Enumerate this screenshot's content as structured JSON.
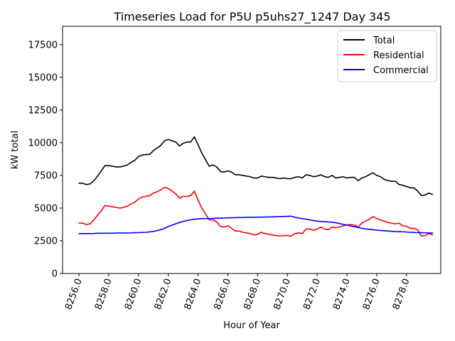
{
  "chart_data": {
    "type": "line",
    "title": "Timeseries Load for P5U p5uhs27_1247  Day 345",
    "xlabel": "Hour of Year",
    "ylabel": "kW total",
    "xlim": [
      8254.9,
      8280.3
    ],
    "ylim": [
      0,
      18900
    ],
    "xticks": [
      8256,
      8258,
      8260,
      8262,
      8264,
      8266,
      8268,
      8270,
      8272,
      8274,
      8276,
      8278
    ],
    "xtick_labels": [
      "8256.0",
      "8258.0",
      "8260.0",
      "8262.0",
      "8264.0",
      "8266.0",
      "8268.0",
      "8270.0",
      "8272.0",
      "8274.0",
      "8276.0",
      "8278.0"
    ],
    "yticks": [
      0,
      2500,
      5000,
      7500,
      10000,
      12500,
      15000,
      17500
    ],
    "ytick_labels": [
      "0",
      "2500",
      "5000",
      "7500",
      "10000",
      "12500",
      "15000",
      "17500"
    ],
    "legend_position": "top-right",
    "x": [
      8256.0,
      8256.25,
      8256.5,
      8256.75,
      8257.0,
      8257.25,
      8257.5,
      8257.75,
      8258.0,
      8258.25,
      8258.5,
      8258.75,
      8259.0,
      8259.25,
      8259.5,
      8259.75,
      8260.0,
      8260.25,
      8260.5,
      8260.75,
      8261.0,
      8261.25,
      8261.5,
      8261.75,
      8262.0,
      8262.25,
      8262.5,
      8262.75,
      8263.0,
      8263.25,
      8263.5,
      8263.75,
      8264.0,
      8264.25,
      8264.5,
      8264.75,
      8265.0,
      8265.25,
      8265.5,
      8265.75,
      8266.0,
      8266.25,
      8266.5,
      8266.75,
      8267.0,
      8267.25,
      8267.5,
      8267.75,
      8268.0,
      8268.25,
      8268.5,
      8268.75,
      8269.0,
      8269.25,
      8269.5,
      8269.75,
      8270.0,
      8270.25,
      8270.5,
      8270.75,
      8271.0,
      8271.25,
      8271.5,
      8271.75,
      8272.0,
      8272.25,
      8272.5,
      8272.75,
      8273.0,
      8273.25,
      8273.5,
      8273.75,
      8274.0,
      8274.25,
      8274.5,
      8274.75,
      8275.0,
      8275.25,
      8275.5,
      8275.75,
      8276.0,
      8276.25,
      8276.5,
      8276.75,
      8277.0,
      8277.25,
      8277.5,
      8277.75,
      8278.0,
      8278.25,
      8278.5,
      8278.75,
      8279.0,
      8279.25,
      8279.5,
      8279.75
    ],
    "series": [
      {
        "name": "Total",
        "color": "#000000",
        "values": [
          6900,
          6900,
          6800,
          6850,
          7100,
          7450,
          7850,
          8250,
          8250,
          8200,
          8150,
          8150,
          8200,
          8300,
          8500,
          8650,
          8950,
          9050,
          9100,
          9100,
          9400,
          9600,
          9800,
          10150,
          10250,
          10150,
          10050,
          9750,
          9950,
          10050,
          10050,
          10450,
          9850,
          9200,
          8700,
          8200,
          8300,
          8150,
          7800,
          7750,
          7850,
          7750,
          7550,
          7550,
          7500,
          7450,
          7400,
          7300,
          7300,
          7450,
          7400,
          7350,
          7350,
          7300,
          7250,
          7300,
          7250,
          7250,
          7350,
          7400,
          7300,
          7550,
          7500,
          7400,
          7450,
          7550,
          7400,
          7350,
          7500,
          7300,
          7350,
          7400,
          7300,
          7350,
          7350,
          7100,
          7300,
          7400,
          7550,
          7700,
          7500,
          7400,
          7200,
          7100,
          7050,
          7050,
          6800,
          6750,
          6650,
          6550,
          6550,
          6300,
          5950,
          6000,
          6150,
          6050
        ]
      },
      {
        "name": "Residential",
        "color": "#ff0000",
        "values": [
          3850,
          3850,
          3750,
          3800,
          4100,
          4450,
          4800,
          5200,
          5150,
          5100,
          5050,
          5000,
          5050,
          5150,
          5300,
          5450,
          5700,
          5850,
          5900,
          5950,
          6150,
          6250,
          6400,
          6600,
          6500,
          6300,
          6100,
          5750,
          5900,
          5900,
          5950,
          6300,
          5600,
          5000,
          4550,
          4100,
          4100,
          3950,
          3600,
          3550,
          3650,
          3450,
          3250,
          3250,
          3150,
          3100,
          3050,
          2950,
          3000,
          3150,
          3050,
          3000,
          2950,
          2900,
          2850,
          2900,
          2900,
          2850,
          3050,
          3100,
          3050,
          3400,
          3400,
          3300,
          3400,
          3550,
          3400,
          3350,
          3550,
          3500,
          3550,
          3650,
          3700,
          3750,
          3700,
          3550,
          3850,
          4000,
          4150,
          4350,
          4200,
          4100,
          4000,
          3900,
          3850,
          3800,
          3850,
          3650,
          3600,
          3450,
          3450,
          3350,
          2850,
          2900,
          3050,
          2950
        ]
      },
      {
        "name": "Commercial",
        "color": "#0000ff",
        "values": [
          3050,
          3050,
          3050,
          3050,
          3060,
          3080,
          3080,
          3080,
          3080,
          3080,
          3090,
          3100,
          3100,
          3100,
          3110,
          3120,
          3130,
          3140,
          3150,
          3180,
          3220,
          3280,
          3350,
          3450,
          3600,
          3700,
          3800,
          3900,
          3980,
          4050,
          4100,
          4150,
          4180,
          4200,
          4200,
          4200,
          4210,
          4220,
          4230,
          4240,
          4250,
          4260,
          4270,
          4280,
          4290,
          4300,
          4300,
          4300,
          4310,
          4310,
          4320,
          4320,
          4330,
          4340,
          4350,
          4360,
          4370,
          4380,
          4300,
          4250,
          4200,
          4150,
          4100,
          4050,
          4000,
          3980,
          3960,
          3940,
          3920,
          3880,
          3820,
          3760,
          3700,
          3640,
          3580,
          3520,
          3460,
          3410,
          3380,
          3350,
          3320,
          3290,
          3270,
          3250,
          3230,
          3210,
          3200,
          3190,
          3170,
          3150,
          3140,
          3130,
          3120,
          3110,
          3100,
          3100
        ]
      }
    ]
  }
}
